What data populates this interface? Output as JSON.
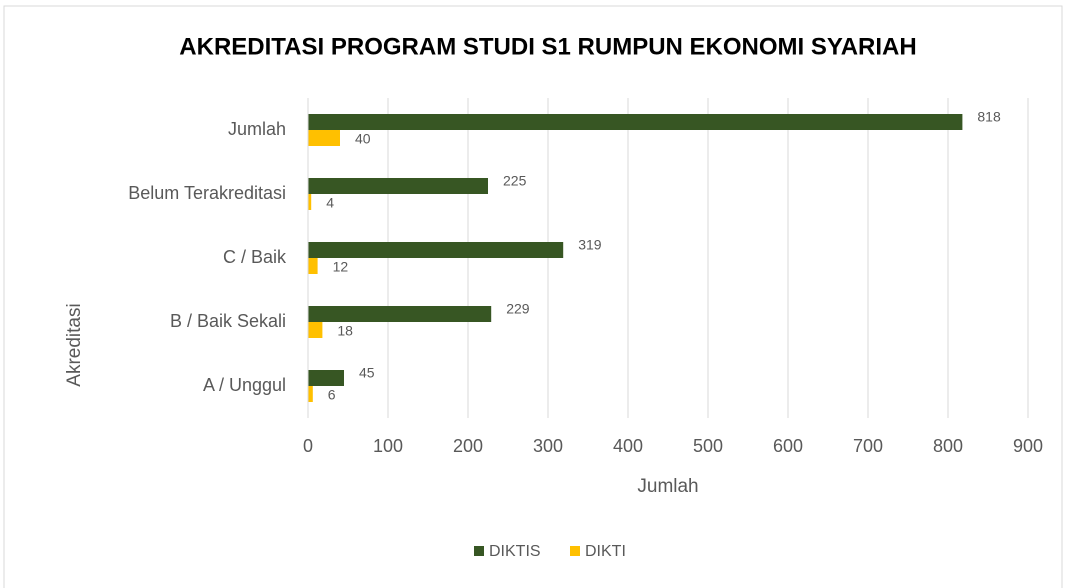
{
  "chart_data": {
    "type": "bar",
    "orientation": "horizontal",
    "title": "AKREDITASI PROGRAM STUDI S1 RUMPUN EKONOMI SYARIAH",
    "x_label": "Jumlah",
    "y_label": "Akreditasi",
    "categories": [
      "Jumlah",
      "Belum Terakreditasi",
      "C / Baik",
      "B / Baik Sekali",
      "A / Unggul"
    ],
    "series": [
      {
        "name": "DIKTIS",
        "color": "#375623",
        "values": [
          818,
          225,
          319,
          229,
          45
        ]
      },
      {
        "name": "DIKTI",
        "color": "#ffc000",
        "values": [
          40,
          4,
          12,
          18,
          6
        ]
      }
    ],
    "xlim": [
      0,
      900
    ],
    "xticks": [
      0,
      100,
      200,
      300,
      400,
      500,
      600,
      700,
      800,
      900
    ],
    "grid": true,
    "legend": "bottom"
  }
}
